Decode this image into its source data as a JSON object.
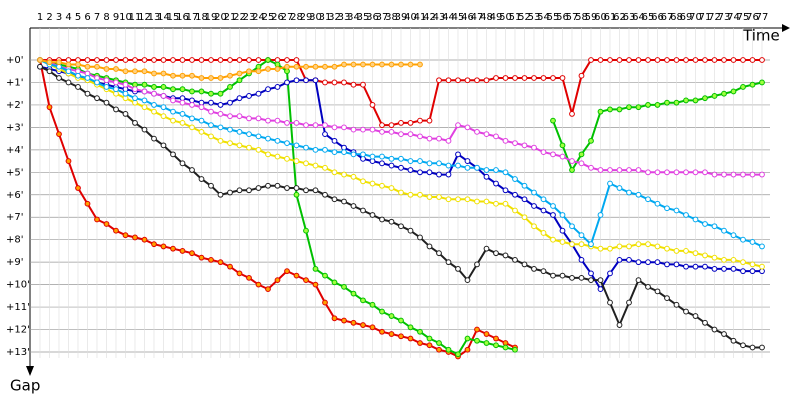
{
  "chart_data": {
    "type": "line",
    "x_label": "Time",
    "y_label": "Gap",
    "x": [
      1,
      2,
      3,
      4,
      5,
      6,
      7,
      8,
      9,
      10,
      11,
      12,
      13,
      14,
      15,
      16,
      17,
      18,
      19,
      20,
      21,
      22,
      23,
      24,
      25,
      26,
      27,
      28,
      29,
      30,
      31,
      32,
      33,
      34,
      35,
      36,
      37,
      38,
      39,
      40,
      41,
      42,
      43,
      44,
      45,
      46,
      47,
      48,
      49,
      50,
      51,
      52,
      53,
      54,
      55,
      56,
      57,
      58,
      59,
      60,
      61,
      62,
      63,
      64,
      65,
      66,
      67,
      68,
      69,
      70,
      71,
      72,
      73,
      74,
      75,
      76,
      77
    ],
    "xlim": [
      1,
      77
    ],
    "ylim": [
      0,
      13
    ],
    "y_inverted": true,
    "grid": true,
    "yticks": [
      {
        "value": 0,
        "label": "+0'"
      },
      {
        "value": 1,
        "label": "+1'"
      },
      {
        "value": 2,
        "label": "+2'"
      },
      {
        "value": 3,
        "label": "+3'"
      },
      {
        "value": 4,
        "label": "+4'"
      },
      {
        "value": 5,
        "label": "+5'"
      },
      {
        "value": 6,
        "label": "+6'"
      },
      {
        "value": 7,
        "label": "+7'"
      },
      {
        "value": 8,
        "label": "+8'"
      },
      {
        "value": 9,
        "label": "+9'"
      },
      {
        "value": 10,
        "label": "+10'"
      },
      {
        "value": 11,
        "label": "+11'"
      },
      {
        "value": 12,
        "label": "+12'"
      },
      {
        "value": 13,
        "label": "+13'"
      }
    ],
    "series": [
      {
        "color": "#e00000",
        "marker_fill": "#ffffff",
        "values": [
          0,
          0,
          0,
          0,
          0,
          0,
          0,
          0,
          0,
          0,
          0,
          0,
          0,
          0,
          0,
          0,
          0,
          0,
          0,
          0,
          0,
          0,
          0,
          0,
          0,
          0,
          0,
          0,
          0.9,
          0.9,
          1,
          1,
          1,
          1.1,
          1.1,
          2,
          2.9,
          2.9,
          2.8,
          2.8,
          2.7,
          2.7,
          0.9,
          0.9,
          0.9,
          0.9,
          0.9,
          0.9,
          0.8,
          0.8,
          0.8,
          0.8,
          0.8,
          0.8,
          0.8,
          0.8,
          2.4,
          0.7,
          0,
          0,
          0,
          0,
          0,
          0,
          0,
          0,
          0,
          0,
          0,
          0,
          0,
          0,
          0,
          0,
          0,
          0,
          0
        ]
      },
      {
        "color": "#e00000",
        "marker_fill": "#ffa000",
        "values": [
          0,
          2.1,
          3.3,
          4.5,
          5.7,
          6.4,
          7.1,
          7.3,
          7.6,
          7.8,
          7.9,
          8,
          8.2,
          8.3,
          8.4,
          8.5,
          8.6,
          8.8,
          8.9,
          9,
          9.2,
          9.5,
          9.7,
          10,
          10.2,
          9.8,
          9.4,
          9.6,
          9.8,
          10,
          10.8,
          11.5,
          11.6,
          11.7,
          11.8,
          11.9,
          12.1,
          12.2,
          12.3,
          12.4,
          12.6,
          12.7,
          12.9,
          13,
          13.2,
          12.9,
          12,
          12.2,
          12.4,
          12.6,
          12.8,
          null,
          null,
          null,
          null,
          null,
          null,
          null,
          null,
          null,
          null,
          null,
          null,
          null,
          null,
          null,
          null,
          null,
          null,
          null,
          null,
          null,
          null,
          null,
          null,
          null,
          null
        ]
      },
      {
        "color": "#00c000",
        "marker_fill": "#a0ff40",
        "values": [
          0,
          0.1,
          0.2,
          0.3,
          0.4,
          0.6,
          0.7,
          0.8,
          0.9,
          1,
          1.1,
          1.1,
          1.2,
          1.2,
          1.3,
          1.3,
          1.4,
          1.4,
          1.5,
          1.5,
          1.2,
          0.9,
          0.6,
          0.3,
          0,
          0.2,
          0.5,
          6,
          7.6,
          9.3,
          9.6,
          9.9,
          10.1,
          10.4,
          10.7,
          10.9,
          11.2,
          11.4,
          11.6,
          11.9,
          12.1,
          12.4,
          12.6,
          12.9,
          13.1,
          12.4,
          12.5,
          12.6,
          12.7,
          12.8,
          12.9,
          null,
          null,
          null,
          2.7,
          3.8,
          4.9,
          4.2,
          3.6,
          2.3,
          2.2,
          2.2,
          2.1,
          2.1,
          2,
          2,
          1.9,
          1.9,
          1.8,
          1.8,
          1.7,
          1.6,
          1.5,
          1.4,
          1.2,
          1.1,
          1
        ]
      },
      {
        "color": "#0000c0",
        "marker_fill": "#ffffff",
        "values": [
          0.3,
          0.4,
          0.5,
          0.6,
          0.7,
          0.9,
          1,
          1.1,
          1.2,
          1.3,
          1.4,
          1.4,
          1.5,
          1.6,
          1.7,
          1.7,
          1.8,
          1.9,
          1.9,
          2,
          1.9,
          1.7,
          1.6,
          1.5,
          1.3,
          1.2,
          1,
          0.9,
          0.9,
          0.9,
          3.3,
          3.6,
          3.9,
          4.1,
          4.4,
          4.5,
          4.6,
          4.7,
          4.8,
          4.9,
          5,
          5,
          5.1,
          5.1,
          4.2,
          4.5,
          4.8,
          5.2,
          5.5,
          5.8,
          6,
          6.2,
          6.5,
          6.7,
          6.9,
          7.6,
          8.2,
          8.9,
          9.5,
          10.2,
          9.5,
          8.9,
          8.9,
          9,
          9,
          9,
          9.1,
          9.1,
          9.2,
          9.2,
          9.2,
          9.3,
          9.3,
          9.3,
          9.4,
          9.4,
          9.4
        ]
      },
      {
        "color": "#202020",
        "marker_fill": "#ffffff",
        "values": [
          0.3,
          0.5,
          0.8,
          1,
          1.2,
          1.5,
          1.7,
          1.9,
          2.2,
          2.4,
          2.8,
          3.1,
          3.5,
          3.8,
          4.2,
          4.6,
          4.9,
          5.3,
          5.6,
          6,
          5.9,
          5.8,
          5.8,
          5.7,
          5.6,
          5.6,
          5.7,
          5.7,
          5.8,
          5.8,
          6,
          6.2,
          6.3,
          6.5,
          6.7,
          6.9,
          7.1,
          7.2,
          7.4,
          7.6,
          7.9,
          8.3,
          8.6,
          9,
          9.3,
          9.8,
          9.1,
          8.4,
          8.6,
          8.7,
          8.9,
          9.1,
          9.3,
          9.4,
          9.6,
          9.6,
          9.7,
          9.7,
          9.8,
          9.8,
          10.8,
          11.8,
          10.8,
          9.8,
          10.1,
          10.3,
          10.6,
          10.9,
          11.2,
          11.4,
          11.7,
          12,
          12.2,
          12.5,
          12.7,
          12.8,
          12.8
        ]
      },
      {
        "color": "#f0e000",
        "marker_fill": "#ffffff",
        "values": [
          0,
          0.2,
          0.4,
          0.6,
          0.8,
          0.9,
          1.1,
          1.3,
          1.5,
          1.7,
          1.9,
          2.1,
          2.3,
          2.5,
          2.7,
          2.8,
          3,
          3.2,
          3.4,
          3.6,
          3.7,
          3.8,
          3.9,
          4,
          4.2,
          4.3,
          4.4,
          4.5,
          4.6,
          4.7,
          4.8,
          5,
          5.1,
          5.2,
          5.4,
          5.5,
          5.6,
          5.7,
          5.9,
          6,
          6,
          6.1,
          6.1,
          6.2,
          6.2,
          6.2,
          6.3,
          6.3,
          6.4,
          6.4,
          6.7,
          7,
          7.4,
          7.7,
          8,
          8.1,
          8.2,
          8.2,
          8.3,
          8.4,
          8.4,
          8.3,
          8.3,
          8.2,
          8.2,
          8.3,
          8.4,
          8.5,
          8.5,
          8.6,
          8.7,
          8.8,
          8.9,
          8.9,
          9,
          9.1,
          9.2
        ]
      },
      {
        "color": "#e040e0",
        "marker_fill": "#ffffff",
        "values": [
          0,
          0.1,
          0.3,
          0.4,
          0.5,
          0.6,
          0.8,
          0.9,
          1,
          1.1,
          1.3,
          1.4,
          1.5,
          1.6,
          1.8,
          1.9,
          2,
          2.1,
          2.3,
          2.4,
          2.5,
          2.5,
          2.6,
          2.6,
          2.7,
          2.7,
          2.8,
          2.8,
          2.9,
          2.9,
          2.9,
          3,
          3,
          3.1,
          3.1,
          3.1,
          3.2,
          3.2,
          3.3,
          3.3,
          3.4,
          3.5,
          3.5,
          3.6,
          2.9,
          3,
          3.2,
          3.3,
          3.4,
          3.6,
          3.7,
          3.8,
          3.9,
          4.1,
          4.2,
          4.3,
          4.5,
          4.6,
          4.8,
          4.9,
          4.9,
          4.9,
          4.9,
          4.9,
          5,
          5,
          5,
          5,
          5,
          5,
          5,
          5.1,
          5.1,
          5.1,
          5.1,
          5.1,
          5.1
        ]
      },
      {
        "color": "#00a8f0",
        "marker_fill": "#ffffff",
        "values": [
          0,
          0.2,
          0.3,
          0.5,
          0.7,
          0.8,
          1,
          1.2,
          1.3,
          1.5,
          1.7,
          1.8,
          2,
          2.1,
          2.3,
          2.4,
          2.6,
          2.7,
          2.9,
          3,
          3.1,
          3.2,
          3.3,
          3.4,
          3.5,
          3.6,
          3.7,
          3.8,
          3.9,
          4,
          4,
          4.1,
          4.1,
          4.2,
          4.2,
          4.3,
          4.3,
          4.4,
          4.4,
          4.5,
          4.5,
          4.6,
          4.6,
          4.7,
          4.7,
          4.8,
          4.8,
          4.9,
          4.9,
          5,
          5.3,
          5.6,
          5.9,
          6.2,
          6.5,
          6.9,
          7.4,
          7.8,
          8.2,
          6.9,
          5.5,
          5.7,
          5.9,
          6,
          6.2,
          6.4,
          6.6,
          6.7,
          6.9,
          7.1,
          7.3,
          7.4,
          7.6,
          7.8,
          8,
          8.1,
          8.3
        ]
      },
      {
        "color": "#ffa000",
        "marker_fill": "#ffd080",
        "values": [
          0,
          0.1,
          0.1,
          0.2,
          0.2,
          0.3,
          0.3,
          0.4,
          0.4,
          0.5,
          0.5,
          0.5,
          0.6,
          0.6,
          0.7,
          0.7,
          0.7,
          0.8,
          0.8,
          0.8,
          0.7,
          0.6,
          0.5,
          0.5,
          0.4,
          0.4,
          0.3,
          0.3,
          0.3,
          0.3,
          0.3,
          0.3,
          0.2,
          0.2,
          0.2,
          0.2,
          0.2,
          0.2,
          0.2,
          0.2,
          0.2,
          null,
          null,
          null,
          null,
          null,
          null,
          null,
          null,
          null,
          null,
          null,
          null,
          null,
          null,
          null,
          null,
          null,
          null,
          null,
          null,
          null,
          null,
          null,
          null,
          null,
          null,
          null,
          null,
          null,
          null,
          null,
          null,
          null,
          null,
          null,
          null
        ]
      }
    ]
  }
}
